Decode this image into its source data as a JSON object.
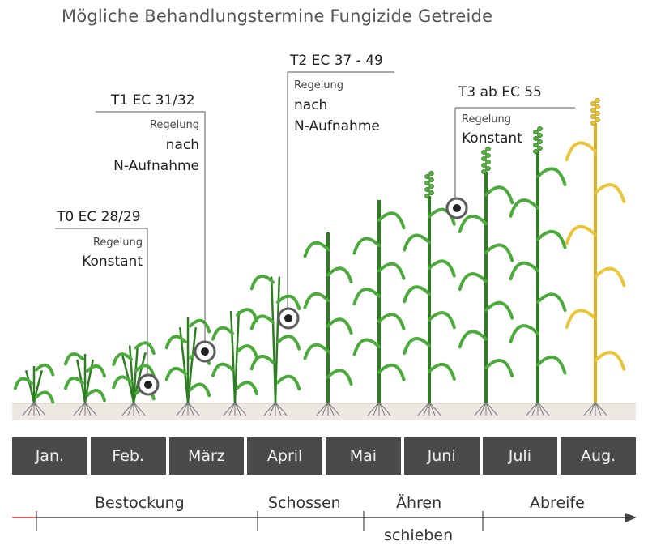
{
  "title": "Mögliche Behandlungstermine Fungizide Getreide",
  "treatments": [
    {
      "id": "t0",
      "label": "T0 EC 28/29",
      "line1": "Regelung",
      "line2": "Konstant",
      "line3": ""
    },
    {
      "id": "t1",
      "label": "T1 EC 31/32",
      "line1": "Regelung",
      "line2": "nach",
      "line3": "N-Aufnahme"
    },
    {
      "id": "t2",
      "label": "T2 EC 37 - 49",
      "line1": "Regelung",
      "line2": "nach",
      "line3": "N-Aufnahme"
    },
    {
      "id": "t3",
      "label": "T3 ab EC 55",
      "line1": "Regelung",
      "line2": "Konstant",
      "line3": ""
    }
  ],
  "months": [
    "Jan.",
    "Feb.",
    "März",
    "April",
    "Mai",
    "Juni",
    "Juli",
    "Aug."
  ],
  "phases": {
    "bestockung": "Bestockung",
    "schossen": "Schossen",
    "aehren": "Ähren",
    "schieben": "schieben",
    "abreife": "Abreife"
  },
  "colors": {
    "plant_green": "#4caa3c",
    "plant_dark": "#2e7d22",
    "ripe_yellow": "#e8c53a",
    "month_bar": "#4a4a4a",
    "marker": "#555555",
    "axis_accent": "#cc3333"
  }
}
